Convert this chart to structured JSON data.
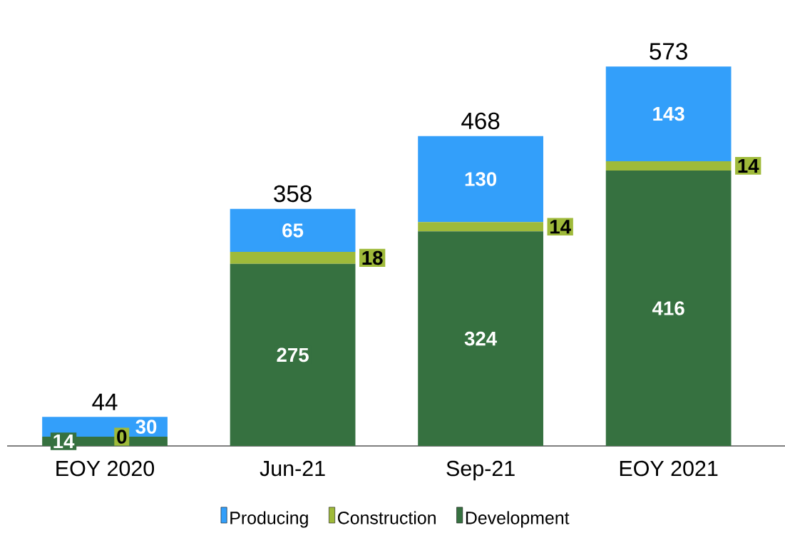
{
  "chart_data": {
    "type": "bar",
    "stacked": true,
    "categories": [
      "EOY 2020",
      "Jun-21",
      "Sep-21",
      "EOY 2021"
    ],
    "series": [
      {
        "name": "Development",
        "color": "#367140",
        "values": [
          14,
          275,
          324,
          416
        ]
      },
      {
        "name": "Construction",
        "color": "#9fba3a",
        "values": [
          0,
          18,
          14,
          14
        ]
      },
      {
        "name": "Producing",
        "color": "#339ffa",
        "values": [
          30,
          65,
          130,
          143
        ]
      }
    ],
    "totals": [
      "44",
      "358",
      "468",
      "573"
    ],
    "data_labels": true,
    "legend": "bottom",
    "tick_labels": "x"
  }
}
